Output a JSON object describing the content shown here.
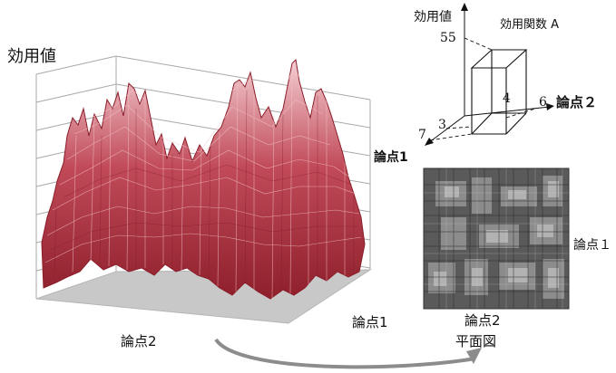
{
  "surface_plot": {
    "z_axis_label": "効用値",
    "x_axis_label": "論点2",
    "y_axis_label": "論点1"
  },
  "box_diagram": {
    "title": "効用関数 A",
    "z_axis_label": "効用値",
    "x_axis_label": "論点２",
    "y_axis_label": "論点1",
    "value_z": "55",
    "value_x": "6",
    "value_center": "4",
    "value_y_front": "3",
    "value_y_back": "7"
  },
  "plan_view": {
    "x_axis_label": "論点2",
    "y_axis_label": "論点１",
    "caption": "平面図"
  },
  "colors": {
    "mesh_dark": "#9c2a35",
    "mesh_light": "#f1c6cc",
    "floor": "#c8c8c8",
    "plan_bg": "#5a5a5a",
    "arrow": "#8c8c8c"
  }
}
